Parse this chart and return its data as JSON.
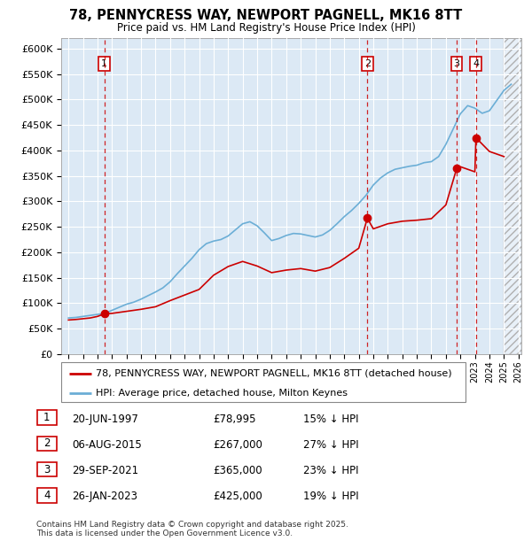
{
  "title_line1": "78, PENNYCRESS WAY, NEWPORT PAGNELL, MK16 8TT",
  "title_line2": "Price paid vs. HM Land Registry's House Price Index (HPI)",
  "plot_bg_color": "#dce9f5",
  "hpi_color": "#6baed6",
  "price_color": "#cc0000",
  "purchases": [
    {
      "date": 1997.47,
      "price": 78995,
      "label": "1"
    },
    {
      "date": 2015.59,
      "price": 267000,
      "label": "2"
    },
    {
      "date": 2021.75,
      "price": 365000,
      "label": "3"
    },
    {
      "date": 2023.07,
      "price": 425000,
      "label": "4"
    }
  ],
  "hpi_data_x": [
    1995,
    1995.25,
    1995.5,
    1995.75,
    1996,
    1996.25,
    1996.5,
    1996.75,
    1997,
    1997.25,
    1997.5,
    1997.75,
    1998,
    1998.25,
    1998.5,
    1998.75,
    1999,
    1999.5,
    2000,
    2000.5,
    2001,
    2001.5,
    2002,
    2002.5,
    2003,
    2003.5,
    2004,
    2004.5,
    2005,
    2005.5,
    2006,
    2006.5,
    2007,
    2007.5,
    2008,
    2008.5,
    2009,
    2009.5,
    2010,
    2010.5,
    2011,
    2011.5,
    2012,
    2012.5,
    2013,
    2013.5,
    2014,
    2014.5,
    2015,
    2015.5,
    2016,
    2016.5,
    2017,
    2017.5,
    2018,
    2018.5,
    2019,
    2019.5,
    2020,
    2020.5,
    2021,
    2021.5,
    2022,
    2022.5,
    2023,
    2023.5,
    2024,
    2024.5,
    2025,
    2025.5
  ],
  "hpi_data_y": [
    71000,
    71500,
    72000,
    73000,
    74000,
    75000,
    76000,
    77000,
    78000,
    79000,
    81000,
    83000,
    86000,
    89000,
    92000,
    95000,
    98000,
    102000,
    108000,
    115000,
    122000,
    130000,
    142000,
    158000,
    173000,
    188000,
    205000,
    217000,
    222000,
    225000,
    232000,
    244000,
    256000,
    260000,
    252000,
    238000,
    223000,
    227000,
    233000,
    237000,
    236000,
    233000,
    230000,
    234000,
    243000,
    256000,
    270000,
    282000,
    296000,
    312000,
    332000,
    346000,
    356000,
    363000,
    366000,
    369000,
    371000,
    376000,
    378000,
    388000,
    412000,
    442000,
    472000,
    488000,
    483000,
    473000,
    478000,
    498000,
    518000,
    530000
  ],
  "price_data_x": [
    1995,
    1995.5,
    1996,
    1996.5,
    1997,
    1997.47,
    1998,
    1999,
    2000,
    2001,
    2002,
    2003,
    2004,
    2005,
    2006,
    2007,
    2008,
    2009,
    2010,
    2011,
    2012,
    2013,
    2014,
    2015,
    2015.59,
    2016,
    2017,
    2018,
    2019,
    2020,
    2021,
    2021.75,
    2022,
    2023,
    2023.07,
    2024,
    2025
  ],
  "price_data_y": [
    67000,
    68000,
    69500,
    71000,
    74000,
    78995,
    80000,
    84000,
    88000,
    93000,
    105000,
    116000,
    127000,
    155000,
    172000,
    182000,
    173000,
    160000,
    165000,
    168000,
    163000,
    170000,
    188000,
    208000,
    267000,
    246000,
    256000,
    261000,
    263000,
    266000,
    293000,
    365000,
    368000,
    358000,
    425000,
    398000,
    388000
  ],
  "xlim": [
    1994.5,
    2026.2
  ],
  "ylim": [
    0,
    620000
  ],
  "yticks": [
    0,
    50000,
    100000,
    150000,
    200000,
    250000,
    300000,
    350000,
    400000,
    450000,
    500000,
    550000,
    600000
  ],
  "ytick_labels": [
    "£0",
    "£50K",
    "£100K",
    "£150K",
    "£200K",
    "£250K",
    "£300K",
    "£350K",
    "£400K",
    "£450K",
    "£500K",
    "£550K",
    "£600K"
  ],
  "xticks": [
    1995,
    1996,
    1997,
    1998,
    1999,
    2000,
    2001,
    2002,
    2003,
    2004,
    2005,
    2006,
    2007,
    2008,
    2009,
    2010,
    2011,
    2012,
    2013,
    2014,
    2015,
    2016,
    2017,
    2018,
    2019,
    2020,
    2021,
    2022,
    2023,
    2024,
    2025,
    2026
  ],
  "legend_items": [
    {
      "label": "78, PENNYCRESS WAY, NEWPORT PAGNELL, MK16 8TT (detached house)",
      "color": "#cc0000"
    },
    {
      "label": "HPI: Average price, detached house, Milton Keynes",
      "color": "#6baed6"
    }
  ],
  "table_rows": [
    {
      "num": "1",
      "date": "20-JUN-1997",
      "price": "£78,995",
      "note": "15% ↓ HPI"
    },
    {
      "num": "2",
      "date": "06-AUG-2015",
      "price": "£267,000",
      "note": "27% ↓ HPI"
    },
    {
      "num": "3",
      "date": "29-SEP-2021",
      "price": "£365,000",
      "note": "23% ↓ HPI"
    },
    {
      "num": "4",
      "date": "26-JAN-2023",
      "price": "£425,000",
      "note": "19% ↓ HPI"
    }
  ],
  "footer_text": "Contains HM Land Registry data © Crown copyright and database right 2025.\nThis data is licensed under the Open Government Licence v3.0."
}
